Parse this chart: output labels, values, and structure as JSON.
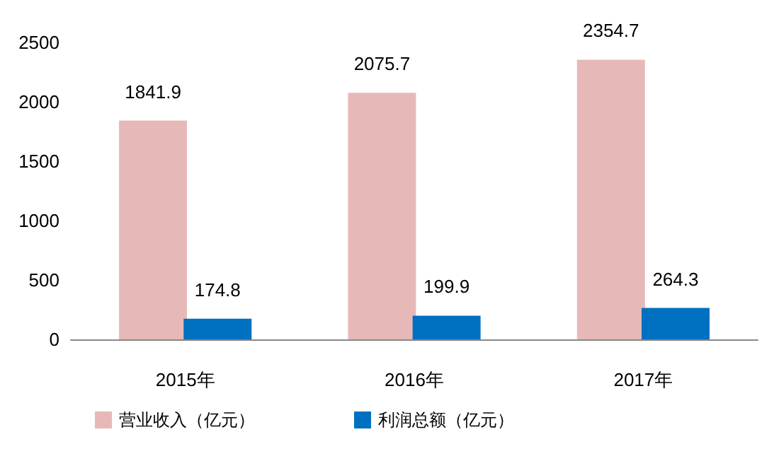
{
  "chart_data": {
    "type": "bar",
    "categories": [
      "2015年",
      "2016年",
      "2017年"
    ],
    "series": [
      {
        "name": "营业收入（亿元）",
        "color": "#e6b9b8",
        "values": [
          1841.9,
          2075.7,
          2354.7
        ]
      },
      {
        "name": "利润总额（亿元）",
        "color": "#0070c0",
        "values": [
          174.8,
          199.9,
          264.3
        ]
      }
    ],
    "ylim": [
      0,
      2500
    ],
    "yticks": [
      0,
      500,
      1000,
      1500,
      2000,
      2500
    ],
    "grid": false,
    "data_labels": true,
    "legend": "bottom left"
  }
}
